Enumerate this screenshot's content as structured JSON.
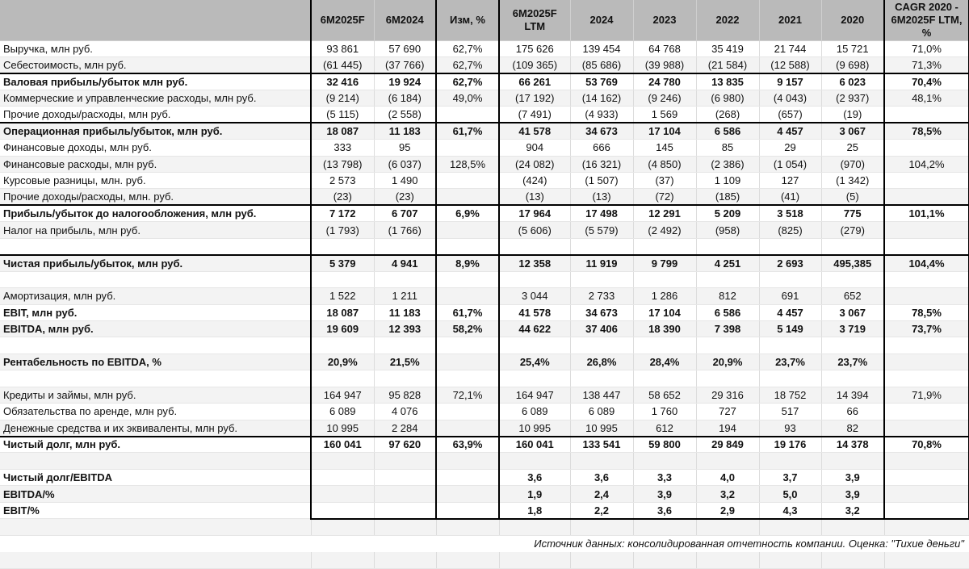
{
  "table": {
    "colors": {
      "header_bg": "#bababa",
      "stripe_bg": "#f3f3f3",
      "thick_border": "#000000",
      "gridline": "#dcdcdc"
    },
    "columns": [
      "",
      "6M2025F",
      "6M2024",
      "Изм, %",
      "6M2025F LTM",
      "2024",
      "2023",
      "2022",
      "2021",
      "2020",
      "CAGR 2020 - 6M2025F LTM, %"
    ],
    "rows": [
      {
        "label": "Выручка, млн руб.",
        "bold": false,
        "thick_top": false,
        "cells": [
          "93 861",
          "57 690",
          "62,7%",
          "175 626",
          "139 454",
          "64 768",
          "35 419",
          "21 744",
          "15 721",
          "71,0%"
        ]
      },
      {
        "label": "Себестоимость, млн руб.",
        "bold": false,
        "thick_top": false,
        "cells": [
          "(61 445)",
          "(37 766)",
          "62,7%",
          "(109 365)",
          "(85 686)",
          "(39 988)",
          "(21 584)",
          "(12 588)",
          "(9 698)",
          "71,3%"
        ]
      },
      {
        "label": "Валовая прибыль/убыток млн руб.",
        "bold": true,
        "thick_top": true,
        "cells": [
          "32 416",
          "19 924",
          "62,7%",
          "66 261",
          "53 769",
          "24 780",
          "13 835",
          "9 157",
          "6 023",
          "70,4%"
        ]
      },
      {
        "label": "Коммерческие и управленческие расходы, млн руб.",
        "bold": false,
        "thick_top": false,
        "cells": [
          "(9 214)",
          "(6 184)",
          "49,0%",
          "(17 192)",
          "(14 162)",
          "(9 246)",
          "(6 980)",
          "(4 043)",
          "(2 937)",
          "48,1%"
        ]
      },
      {
        "label": "Прочие доходы/расходы, млн руб.",
        "bold": false,
        "thick_top": false,
        "cells": [
          "(5 115)",
          "(2 558)",
          "",
          "(7 491)",
          "(4 933)",
          "1 569",
          "(268)",
          "(657)",
          "(19)",
          ""
        ]
      },
      {
        "label": "Операционная прибыль/убыток, млн руб.",
        "bold": true,
        "thick_top": true,
        "cells": [
          "18 087",
          "11 183",
          "61,7%",
          "41 578",
          "34 673",
          "17 104",
          "6 586",
          "4 457",
          "3 067",
          "78,5%"
        ]
      },
      {
        "label": "Финансовые доходы, млн руб.",
        "bold": false,
        "thick_top": false,
        "cells": [
          "333",
          "95",
          "",
          "904",
          "666",
          "145",
          "85",
          "29",
          "25",
          ""
        ]
      },
      {
        "label": "Финансовые расходы, млн руб.",
        "bold": false,
        "thick_top": false,
        "cells": [
          "(13 798)",
          "(6 037)",
          "128,5%",
          "(24 082)",
          "(16 321)",
          "(4 850)",
          "(2 386)",
          "(1 054)",
          "(970)",
          "104,2%"
        ]
      },
      {
        "label": "Курсовые разницы, млн. руб.",
        "bold": false,
        "thick_top": false,
        "cells": [
          "2 573",
          "1 490",
          "",
          "(424)",
          "(1 507)",
          "(37)",
          "1 109",
          "127",
          "(1 342)",
          ""
        ]
      },
      {
        "label": "Прочие доходы/расходы, млн. руб.",
        "bold": false,
        "thick_top": false,
        "cells": [
          "(23)",
          "(23)",
          "",
          "(13)",
          "(13)",
          "(72)",
          "(185)",
          "(41)",
          "(5)",
          ""
        ]
      },
      {
        "label": "Прибыль/убыток до налогообложения, млн руб.",
        "bold": true,
        "thick_top": true,
        "cells": [
          "7 172",
          "6 707",
          "6,9%",
          "17 964",
          "17 498",
          "12 291",
          "5 209",
          "3 518",
          "775",
          "101,1%"
        ]
      },
      {
        "label": "Налог на прибыль, млн руб.",
        "bold": false,
        "thick_top": false,
        "cells": [
          "(1 793)",
          "(1 766)",
          "",
          "(5 606)",
          "(5 579)",
          "(2 492)",
          "(958)",
          "(825)",
          "(279)",
          ""
        ]
      },
      {
        "label": "",
        "bold": false,
        "thick_top": false,
        "cells": [
          "",
          "",
          "",
          "",
          "",
          "",
          "",
          "",
          "",
          ""
        ]
      },
      {
        "label": "Чистая прибыль/убыток, млн руб.",
        "bold": true,
        "thick_top": true,
        "cells": [
          "5 379",
          "4 941",
          "8,9%",
          "12 358",
          "11 919",
          "9 799",
          "4 251",
          "2 693",
          "495,385",
          "104,4%"
        ]
      },
      {
        "label": "",
        "bold": false,
        "thick_top": false,
        "cells": [
          "",
          "",
          "",
          "",
          "",
          "",
          "",
          "",
          "",
          ""
        ]
      },
      {
        "label": "Амортизация, млн руб.",
        "bold": false,
        "thick_top": false,
        "cells": [
          "1 522",
          "1 211",
          "",
          "3 044",
          "2 733",
          "1 286",
          "812",
          "691",
          "652",
          ""
        ]
      },
      {
        "label": "EBIT, млн руб.",
        "bold": true,
        "thick_top": false,
        "cells": [
          "18 087",
          "11 183",
          "61,7%",
          "41 578",
          "34 673",
          "17 104",
          "6 586",
          "4 457",
          "3 067",
          "78,5%"
        ]
      },
      {
        "label": "EBITDA, млн руб.",
        "bold": true,
        "thick_top": false,
        "cells": [
          "19 609",
          "12 393",
          "58,2%",
          "44 622",
          "37 406",
          "18 390",
          "7 398",
          "5 149",
          "3 719",
          "73,7%"
        ]
      },
      {
        "label": "",
        "bold": false,
        "thick_top": false,
        "cells": [
          "",
          "",
          "",
          "",
          "",
          "",
          "",
          "",
          "",
          ""
        ]
      },
      {
        "label": "Рентабельность по EBITDA, %",
        "bold": true,
        "thick_top": false,
        "cells": [
          "20,9%",
          "21,5%",
          "",
          "25,4%",
          "26,8%",
          "28,4%",
          "20,9%",
          "23,7%",
          "23,7%",
          ""
        ]
      },
      {
        "label": "",
        "bold": false,
        "thick_top": false,
        "cells": [
          "",
          "",
          "",
          "",
          "",
          "",
          "",
          "",
          "",
          ""
        ]
      },
      {
        "label": "Кредиты и займы, млн руб.",
        "bold": false,
        "thick_top": false,
        "cells": [
          "164 947",
          "95 828",
          "72,1%",
          "164 947",
          "138 447",
          "58 652",
          "29 316",
          "18 752",
          "14 394",
          "71,9%"
        ]
      },
      {
        "label": "Обязательства по аренде, млн руб.",
        "bold": false,
        "thick_top": false,
        "cells": [
          "6 089",
          "4 076",
          "",
          "6 089",
          "6 089",
          "1 760",
          "727",
          "517",
          "66",
          ""
        ]
      },
      {
        "label": "Денежные средства и их эквиваленты, млн руб.",
        "bold": false,
        "thick_top": false,
        "cells": [
          "10 995",
          "2 284",
          "",
          "10 995",
          "10 995",
          "612",
          "194",
          "93",
          "82",
          ""
        ]
      },
      {
        "label": "Чистый долг, млн руб.",
        "bold": true,
        "thick_top": true,
        "cells": [
          "160 041",
          "97 620",
          "63,9%",
          "160 041",
          "133 541",
          "59 800",
          "29 849",
          "19 176",
          "14 378",
          "70,8%"
        ]
      },
      {
        "label": "",
        "bold": false,
        "thick_top": false,
        "cells": [
          "",
          "",
          "",
          "",
          "",
          "",
          "",
          "",
          "",
          ""
        ]
      },
      {
        "label": "Чистый долг/EBITDA",
        "bold": true,
        "thick_top": false,
        "cells": [
          "",
          "",
          "",
          "3,6",
          "3,6",
          "3,3",
          "4,0",
          "3,7",
          "3,9",
          ""
        ]
      },
      {
        "label": "EBITDA/%",
        "bold": true,
        "thick_top": false,
        "cells": [
          "",
          "",
          "",
          "1,9",
          "2,4",
          "3,9",
          "3,2",
          "5,0",
          "3,9",
          ""
        ]
      },
      {
        "label": "EBIT/%",
        "bold": true,
        "thick_top": false,
        "cells": [
          "",
          "",
          "",
          "1,8",
          "2,2",
          "3,6",
          "2,9",
          "4,3",
          "3,2",
          ""
        ]
      }
    ],
    "source_note": "Источник данных: консолидированная отчетность компании. Оценка: \"Тихие деньги\""
  }
}
